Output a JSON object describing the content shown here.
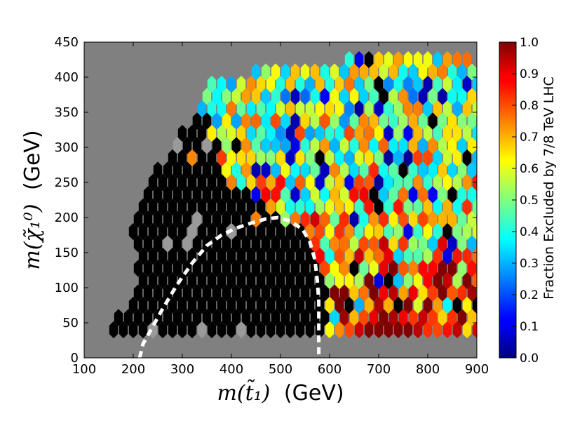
{
  "chart_data": {
    "type": "heatmap",
    "subtype": "hexbin",
    "title": "",
    "xlabel_math": "m(t̃₁)",
    "xlabel_unit": "(GeV)",
    "ylabel_math": "m(χ̃₁⁰)",
    "ylabel_unit": "(GeV)",
    "xlim": [
      100,
      900
    ],
    "ylim": [
      0,
      450
    ],
    "xticks": [
      100,
      200,
      300,
      400,
      500,
      600,
      700,
      800,
      900
    ],
    "yticks": [
      0,
      50,
      100,
      150,
      200,
      250,
      300,
      350,
      400,
      450
    ],
    "background_color": "#808080",
    "no_data_color": "#9a9a9a",
    "colormap": "jet",
    "colorbar": {
      "label": "Fraction Excluded by 7/8 TeV LHC",
      "range": [
        0.0,
        1.0
      ],
      "ticks": [
        "0.0",
        "0.1",
        "0.2",
        "0.3",
        "0.4",
        "0.5",
        "0.6",
        "0.7",
        "0.8",
        "0.9",
        "1.0"
      ],
      "over_color": "#000000"
    },
    "hex_spacing": {
      "dx": 20,
      "dy": 17.5
    },
    "region_notes": "Region rows: each entry lists stop-mass span [x_start, x_end] and neutralino mass y of a hexbin row.",
    "excluded_rows": [
      {
        "y": 40,
        "x": [
          160,
          580
        ]
      },
      {
        "y": 57.5,
        "x": [
          170,
          590
        ]
      },
      {
        "y": 75,
        "x": [
          190,
          590
        ]
      },
      {
        "y": 92.5,
        "x": [
          200,
          590
        ]
      },
      {
        "y": 110,
        "x": [
          210,
          580
        ]
      },
      {
        "y": 127.5,
        "x": [
          200,
          580
        ]
      },
      {
        "y": 145,
        "x": [
          210,
          560
        ]
      },
      {
        "y": 162.5,
        "x": [
          200,
          560
        ]
      },
      {
        "y": 180,
        "x": [
          190,
          550
        ]
      },
      {
        "y": 197.5,
        "x": [
          200,
          500
        ]
      },
      {
        "y": 215,
        "x": [
          210,
          470
        ]
      },
      {
        "y": 232.5,
        "x": [
          220,
          440
        ]
      },
      {
        "y": 250,
        "x": [
          230,
          390
        ]
      },
      {
        "y": 267.5,
        "x": [
          240,
          380
        ]
      },
      {
        "y": 285,
        "x": [
          270,
          370
        ]
      },
      {
        "y": 302.5,
        "x": [
          280,
          360
        ]
      },
      {
        "y": 320,
        "x": [
          300,
          350
        ]
      },
      {
        "y": 337.5,
        "x": [
          330,
          350
        ]
      }
    ],
    "colored_region": {
      "description": "Top-right region of partially excluded points",
      "rows": [
        {
          "y": 40,
          "x": [
            590,
            900
          ],
          "level": 0.9
        },
        {
          "y": 57.5,
          "x": [
            600,
            900
          ],
          "level": 0.88
        },
        {
          "y": 75,
          "x": [
            600,
            900
          ],
          "level": 0.85
        },
        {
          "y": 92.5,
          "x": [
            600,
            900
          ],
          "level": 0.82
        },
        {
          "y": 110,
          "x": [
            590,
            900
          ],
          "level": 0.78
        },
        {
          "y": 127.5,
          "x": [
            590,
            900
          ],
          "level": 0.75
        },
        {
          "y": 145,
          "x": [
            570,
            900
          ],
          "level": 0.72
        },
        {
          "y": 162.5,
          "x": [
            570,
            900
          ],
          "level": 0.7
        },
        {
          "y": 180,
          "x": [
            560,
            900
          ],
          "level": 0.68
        },
        {
          "y": 197.5,
          "x": [
            510,
            900
          ],
          "level": 0.66
        },
        {
          "y": 215,
          "x": [
            480,
            900
          ],
          "level": 0.64
        },
        {
          "y": 232.5,
          "x": [
            450,
            900
          ],
          "level": 0.62
        },
        {
          "y": 250,
          "x": [
            400,
            900
          ],
          "level": 0.6
        },
        {
          "y": 267.5,
          "x": [
            390,
            900
          ],
          "level": 0.58
        },
        {
          "y": 285,
          "x": [
            380,
            900
          ],
          "level": 0.56
        },
        {
          "y": 302.5,
          "x": [
            370,
            900
          ],
          "level": 0.55
        },
        {
          "y": 320,
          "x": [
            340,
            900
          ],
          "level": 0.54
        },
        {
          "y": 337.5,
          "x": [
            330,
            900
          ],
          "level": 0.53
        },
        {
          "y": 355,
          "x": [
            330,
            900
          ],
          "level": 0.52
        },
        {
          "y": 372.5,
          "x": [
            350,
            900
          ],
          "level": 0.5
        },
        {
          "y": 390,
          "x": [
            360,
            900
          ],
          "level": 0.5
        },
        {
          "y": 407.5,
          "x": [
            440,
            900
          ],
          "level": 0.5
        },
        {
          "y": 425,
          "x": [
            630,
            890
          ],
          "level": 0.5
        }
      ]
    },
    "exclusion_contour": {
      "style": "dashed",
      "color": "#ffffff",
      "points": [
        [
          213,
          0
        ],
        [
          220,
          20
        ],
        [
          240,
          45
        ],
        [
          260,
          70
        ],
        [
          290,
          105
        ],
        [
          320,
          135
        ],
        [
          350,
          160
        ],
        [
          380,
          175
        ],
        [
          410,
          185
        ],
        [
          440,
          192
        ],
        [
          470,
          198
        ],
        [
          495,
          200
        ],
        [
          520,
          195
        ],
        [
          545,
          183
        ],
        [
          560,
          165
        ],
        [
          570,
          140
        ],
        [
          575,
          110
        ],
        [
          578,
          80
        ],
        [
          578,
          40
        ],
        [
          578,
          5
        ]
      ]
    }
  }
}
